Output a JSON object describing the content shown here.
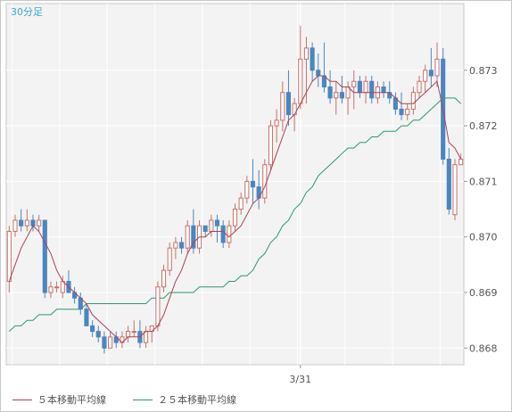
{
  "chart_data": {
    "type": "candlestick",
    "timeframe_label": "30分足",
    "xlabel": "",
    "ylabel": "",
    "ylim": [
      0.8677,
      0.8742
    ],
    "y_ticks": [
      "0.873",
      "0.872",
      "0.871",
      "0.870",
      "0.869",
      "0.868"
    ],
    "y_tick_values": [
      0.873,
      0.872,
      0.871,
      0.87,
      0.869,
      0.868
    ],
    "x_labels": [
      {
        "text": "3/31",
        "index": 49
      }
    ],
    "colors": {
      "up": "#c8706a",
      "down": "#4a86c0",
      "ma5": "#b04050",
      "ma25": "#2a9a6a",
      "plot_bg": "#f3f3f3",
      "grid": "#ffffff",
      "axis_text": "#555555",
      "title": "#3aa7d8"
    },
    "legend": [
      {
        "name": "５本移動平均線",
        "color": "#b04050"
      },
      {
        "name": "２５本移動平均線",
        "color": "#2a9a6a"
      }
    ],
    "legend_position": "bottom-left",
    "series": [
      {
        "name": "candles",
        "ohlc": [
          [
            0.8692,
            0.8702,
            0.869,
            0.8701
          ],
          [
            0.8701,
            0.8704,
            0.87,
            0.8703
          ],
          [
            0.8703,
            0.8705,
            0.8701,
            0.8702
          ],
          [
            0.8702,
            0.8705,
            0.8701,
            0.8703
          ],
          [
            0.8703,
            0.8704,
            0.8701,
            0.8702
          ],
          [
            0.8702,
            0.8704,
            0.8701,
            0.8703
          ],
          [
            0.8703,
            0.8703,
            0.8689,
            0.869
          ],
          [
            0.869,
            0.8692,
            0.8689,
            0.8691
          ],
          [
            0.8691,
            0.8692,
            0.869,
            0.8691
          ],
          [
            0.869,
            0.8693,
            0.8689,
            0.8692
          ],
          [
            0.8692,
            0.8694,
            0.869,
            0.869
          ],
          [
            0.869,
            0.8691,
            0.8688,
            0.8689
          ],
          [
            0.8689,
            0.869,
            0.8686,
            0.8687
          ],
          [
            0.8687,
            0.8688,
            0.8684,
            0.8684
          ],
          [
            0.8684,
            0.8685,
            0.8682,
            0.8683
          ],
          [
            0.8683,
            0.8684,
            0.8681,
            0.8682
          ],
          [
            0.8682,
            0.8683,
            0.8679,
            0.868
          ],
          [
            0.868,
            0.8683,
            0.868,
            0.8682
          ],
          [
            0.8682,
            0.8683,
            0.868,
            0.8681
          ],
          [
            0.8681,
            0.8683,
            0.868,
            0.8682
          ],
          [
            0.8682,
            0.8684,
            0.8681,
            0.8683
          ],
          [
            0.8683,
            0.8685,
            0.8682,
            0.8683
          ],
          [
            0.8683,
            0.8685,
            0.868,
            0.8681
          ],
          [
            0.8681,
            0.8684,
            0.868,
            0.8683
          ],
          [
            0.8683,
            0.8684,
            0.8681,
            0.8684
          ],
          [
            0.8684,
            0.8692,
            0.8683,
            0.8691
          ],
          [
            0.8691,
            0.8695,
            0.869,
            0.8694
          ],
          [
            0.8694,
            0.8699,
            0.8693,
            0.8698
          ],
          [
            0.8698,
            0.87,
            0.8696,
            0.8699
          ],
          [
            0.8699,
            0.87,
            0.8697,
            0.8698
          ],
          [
            0.8698,
            0.8703,
            0.8697,
            0.8702
          ],
          [
            0.8702,
            0.8705,
            0.8697,
            0.8698
          ],
          [
            0.8698,
            0.8703,
            0.8697,
            0.8702
          ],
          [
            0.8702,
            0.8702,
            0.87,
            0.8701
          ],
          [
            0.8701,
            0.8704,
            0.87,
            0.8703
          ],
          [
            0.8703,
            0.8704,
            0.8699,
            0.8702
          ],
          [
            0.8702,
            0.8703,
            0.8698,
            0.8699
          ],
          [
            0.8699,
            0.8703,
            0.8698,
            0.8702
          ],
          [
            0.8702,
            0.8706,
            0.8701,
            0.8705
          ],
          [
            0.8705,
            0.8708,
            0.8704,
            0.8707
          ],
          [
            0.8707,
            0.8711,
            0.8706,
            0.871
          ],
          [
            0.871,
            0.8714,
            0.8706,
            0.8709
          ],
          [
            0.8709,
            0.8712,
            0.8705,
            0.8707
          ],
          [
            0.8707,
            0.8714,
            0.8706,
            0.8713
          ],
          [
            0.8713,
            0.8721,
            0.8712,
            0.872
          ],
          [
            0.872,
            0.8723,
            0.8717,
            0.8721
          ],
          [
            0.8721,
            0.8728,
            0.8719,
            0.8726
          ],
          [
            0.8726,
            0.873,
            0.872,
            0.8722
          ],
          [
            0.8722,
            0.8725,
            0.8719,
            0.8724
          ],
          [
            0.8724,
            0.8738,
            0.8723,
            0.8732
          ],
          [
            0.8732,
            0.8736,
            0.8724,
            0.8734
          ],
          [
            0.8734,
            0.8735,
            0.8728,
            0.873
          ],
          [
            0.873,
            0.8733,
            0.8727,
            0.8729
          ],
          [
            0.8729,
            0.8735,
            0.8726,
            0.8727
          ],
          [
            0.8727,
            0.873,
            0.8724,
            0.8725
          ],
          [
            0.8725,
            0.8728,
            0.8722,
            0.8726
          ],
          [
            0.8726,
            0.8729,
            0.8724,
            0.8725
          ],
          [
            0.8725,
            0.8728,
            0.8722,
            0.8727
          ],
          [
            0.8727,
            0.873,
            0.8723,
            0.8728
          ],
          [
            0.8728,
            0.8729,
            0.8725,
            0.8726
          ],
          [
            0.8726,
            0.8729,
            0.8724,
            0.8728
          ],
          [
            0.8728,
            0.8729,
            0.8724,
            0.8725
          ],
          [
            0.8725,
            0.8728,
            0.8724,
            0.8727
          ],
          [
            0.8727,
            0.8728,
            0.8725,
            0.8726
          ],
          [
            0.8726,
            0.8728,
            0.8724,
            0.8725
          ],
          [
            0.8725,
            0.8726,
            0.8722,
            0.8723
          ],
          [
            0.8723,
            0.8726,
            0.8721,
            0.8722
          ],
          [
            0.8722,
            0.8724,
            0.8721,
            0.8723
          ],
          [
            0.8723,
            0.8727,
            0.8722,
            0.8726
          ],
          [
            0.8726,
            0.8729,
            0.8725,
            0.8728
          ],
          [
            0.8728,
            0.8731,
            0.8726,
            0.873
          ],
          [
            0.873,
            0.8734,
            0.8727,
            0.8729
          ],
          [
            0.8729,
            0.8735,
            0.8727,
            0.8732
          ],
          [
            0.8732,
            0.8734,
            0.8713,
            0.8714
          ],
          [
            0.8714,
            0.8716,
            0.8704,
            0.8705
          ],
          [
            0.8704,
            0.8714,
            0.8703,
            0.8713
          ],
          [
            0.8713,
            0.8715,
            0.8713,
            0.8714
          ]
        ]
      },
      {
        "name": "５本移動平均線",
        "values": [
          0.8692,
          0.8695,
          0.8698,
          0.87,
          0.8702,
          0.8701,
          0.8699,
          0.8697,
          0.8694,
          0.8692,
          0.8691,
          0.869,
          0.8689,
          0.8688,
          0.8686,
          0.8685,
          0.8684,
          0.8683,
          0.8682,
          0.8681,
          0.8682,
          0.8682,
          0.8682,
          0.8683,
          0.8683,
          0.8684,
          0.8686,
          0.8689,
          0.8692,
          0.8694,
          0.8697,
          0.8699,
          0.87,
          0.87,
          0.8701,
          0.8701,
          0.8701,
          0.87,
          0.8701,
          0.8702,
          0.8704,
          0.8706,
          0.8707,
          0.8709,
          0.8712,
          0.8715,
          0.8718,
          0.8721,
          0.8722,
          0.8724,
          0.8726,
          0.8728,
          0.8729,
          0.8729,
          0.8728,
          0.8728,
          0.8727,
          0.8727,
          0.8726,
          0.8726,
          0.8726,
          0.8726,
          0.8726,
          0.8726,
          0.8726,
          0.8725,
          0.8724,
          0.8724,
          0.8724,
          0.8725,
          0.8726,
          0.8727,
          0.8728,
          0.8723,
          0.8717,
          0.8716,
          0.8714
        ]
      },
      {
        "name": "２５本移動平均線",
        "values": [
          0.8683,
          0.8684,
          0.8684,
          0.8685,
          0.8685,
          0.8686,
          0.8686,
          0.8686,
          0.8687,
          0.8687,
          0.8687,
          0.8687,
          0.8687,
          0.8688,
          0.8688,
          0.8688,
          0.8688,
          0.8688,
          0.8688,
          0.8688,
          0.8688,
          0.8688,
          0.8688,
          0.8688,
          0.8689,
          0.8689,
          0.8689,
          0.869,
          0.869,
          0.869,
          0.869,
          0.869,
          0.8691,
          0.8691,
          0.8691,
          0.8691,
          0.8691,
          0.8692,
          0.8692,
          0.8693,
          0.8693,
          0.8694,
          0.8696,
          0.8697,
          0.8699,
          0.87,
          0.8702,
          0.8703,
          0.8705,
          0.8706,
          0.8708,
          0.8709,
          0.8711,
          0.8712,
          0.8713,
          0.8714,
          0.8715,
          0.8716,
          0.8716,
          0.8717,
          0.8717,
          0.8718,
          0.8718,
          0.8719,
          0.8719,
          0.8719,
          0.872,
          0.872,
          0.8721,
          0.8721,
          0.8722,
          0.8723,
          0.8724,
          0.8725,
          0.8725,
          0.8725,
          0.8724
        ]
      }
    ]
  }
}
